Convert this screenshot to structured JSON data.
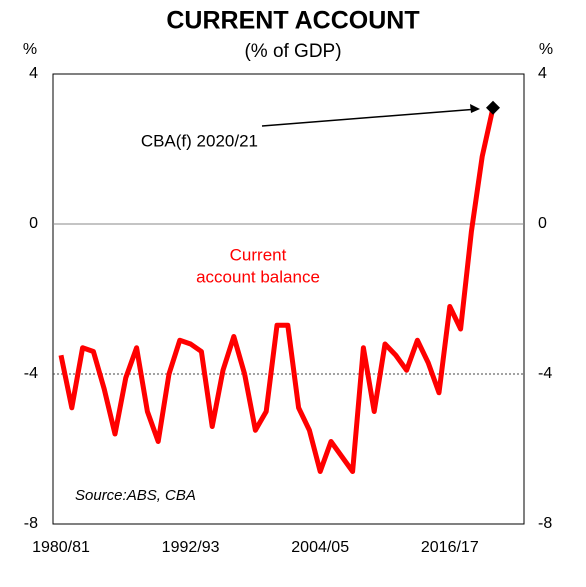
{
  "chart_data": {
    "type": "line",
    "title": "CURRENT ACCOUNT",
    "subtitle": "(% of GDP)",
    "y_unit": "%",
    "y2_unit": "%",
    "categories": [
      "1980/81",
      null,
      null,
      null,
      null,
      null,
      null,
      null,
      null,
      null,
      null,
      null,
      "1992/93",
      null,
      null,
      null,
      null,
      null,
      null,
      null,
      null,
      null,
      null,
      null,
      "2004/05",
      null,
      null,
      null,
      null,
      null,
      null,
      null,
      null,
      null,
      null,
      null,
      "2016/17",
      null,
      null,
      null,
      null
    ],
    "series": [
      {
        "name": "Current account balance",
        "name_lines": [
          "Current",
          "account balance"
        ],
        "color": "#ff0000",
        "values": [
          -3.5,
          -4.9,
          -3.3,
          -3.4,
          -4.4,
          -5.6,
          -4.1,
          -3.3,
          -5.0,
          -5.8,
          -4.0,
          -3.1,
          -3.2,
          -3.4,
          -5.4,
          -3.9,
          -3.0,
          -4.0,
          -5.5,
          -5.0,
          -2.7,
          -2.7,
          -4.9,
          -5.5,
          -6.6,
          -5.8,
          -6.2,
          -6.6,
          -3.3,
          -5.0,
          -3.2,
          -3.5,
          -3.9,
          -3.1,
          -3.7,
          -4.5,
          -2.2,
          -2.8,
          -0.2,
          1.8,
          3.1
        ]
      }
    ],
    "annotation": "CBA(f) 2020/21",
    "source": "Source:ABS, CBA",
    "ylim": [
      -8,
      4
    ],
    "yticks": [
      -8,
      -4,
      0,
      4
    ],
    "y2lim": [
      -8,
      4
    ],
    "y2ticks": [
      -8,
      -4,
      0,
      4
    ],
    "grid": true
  }
}
